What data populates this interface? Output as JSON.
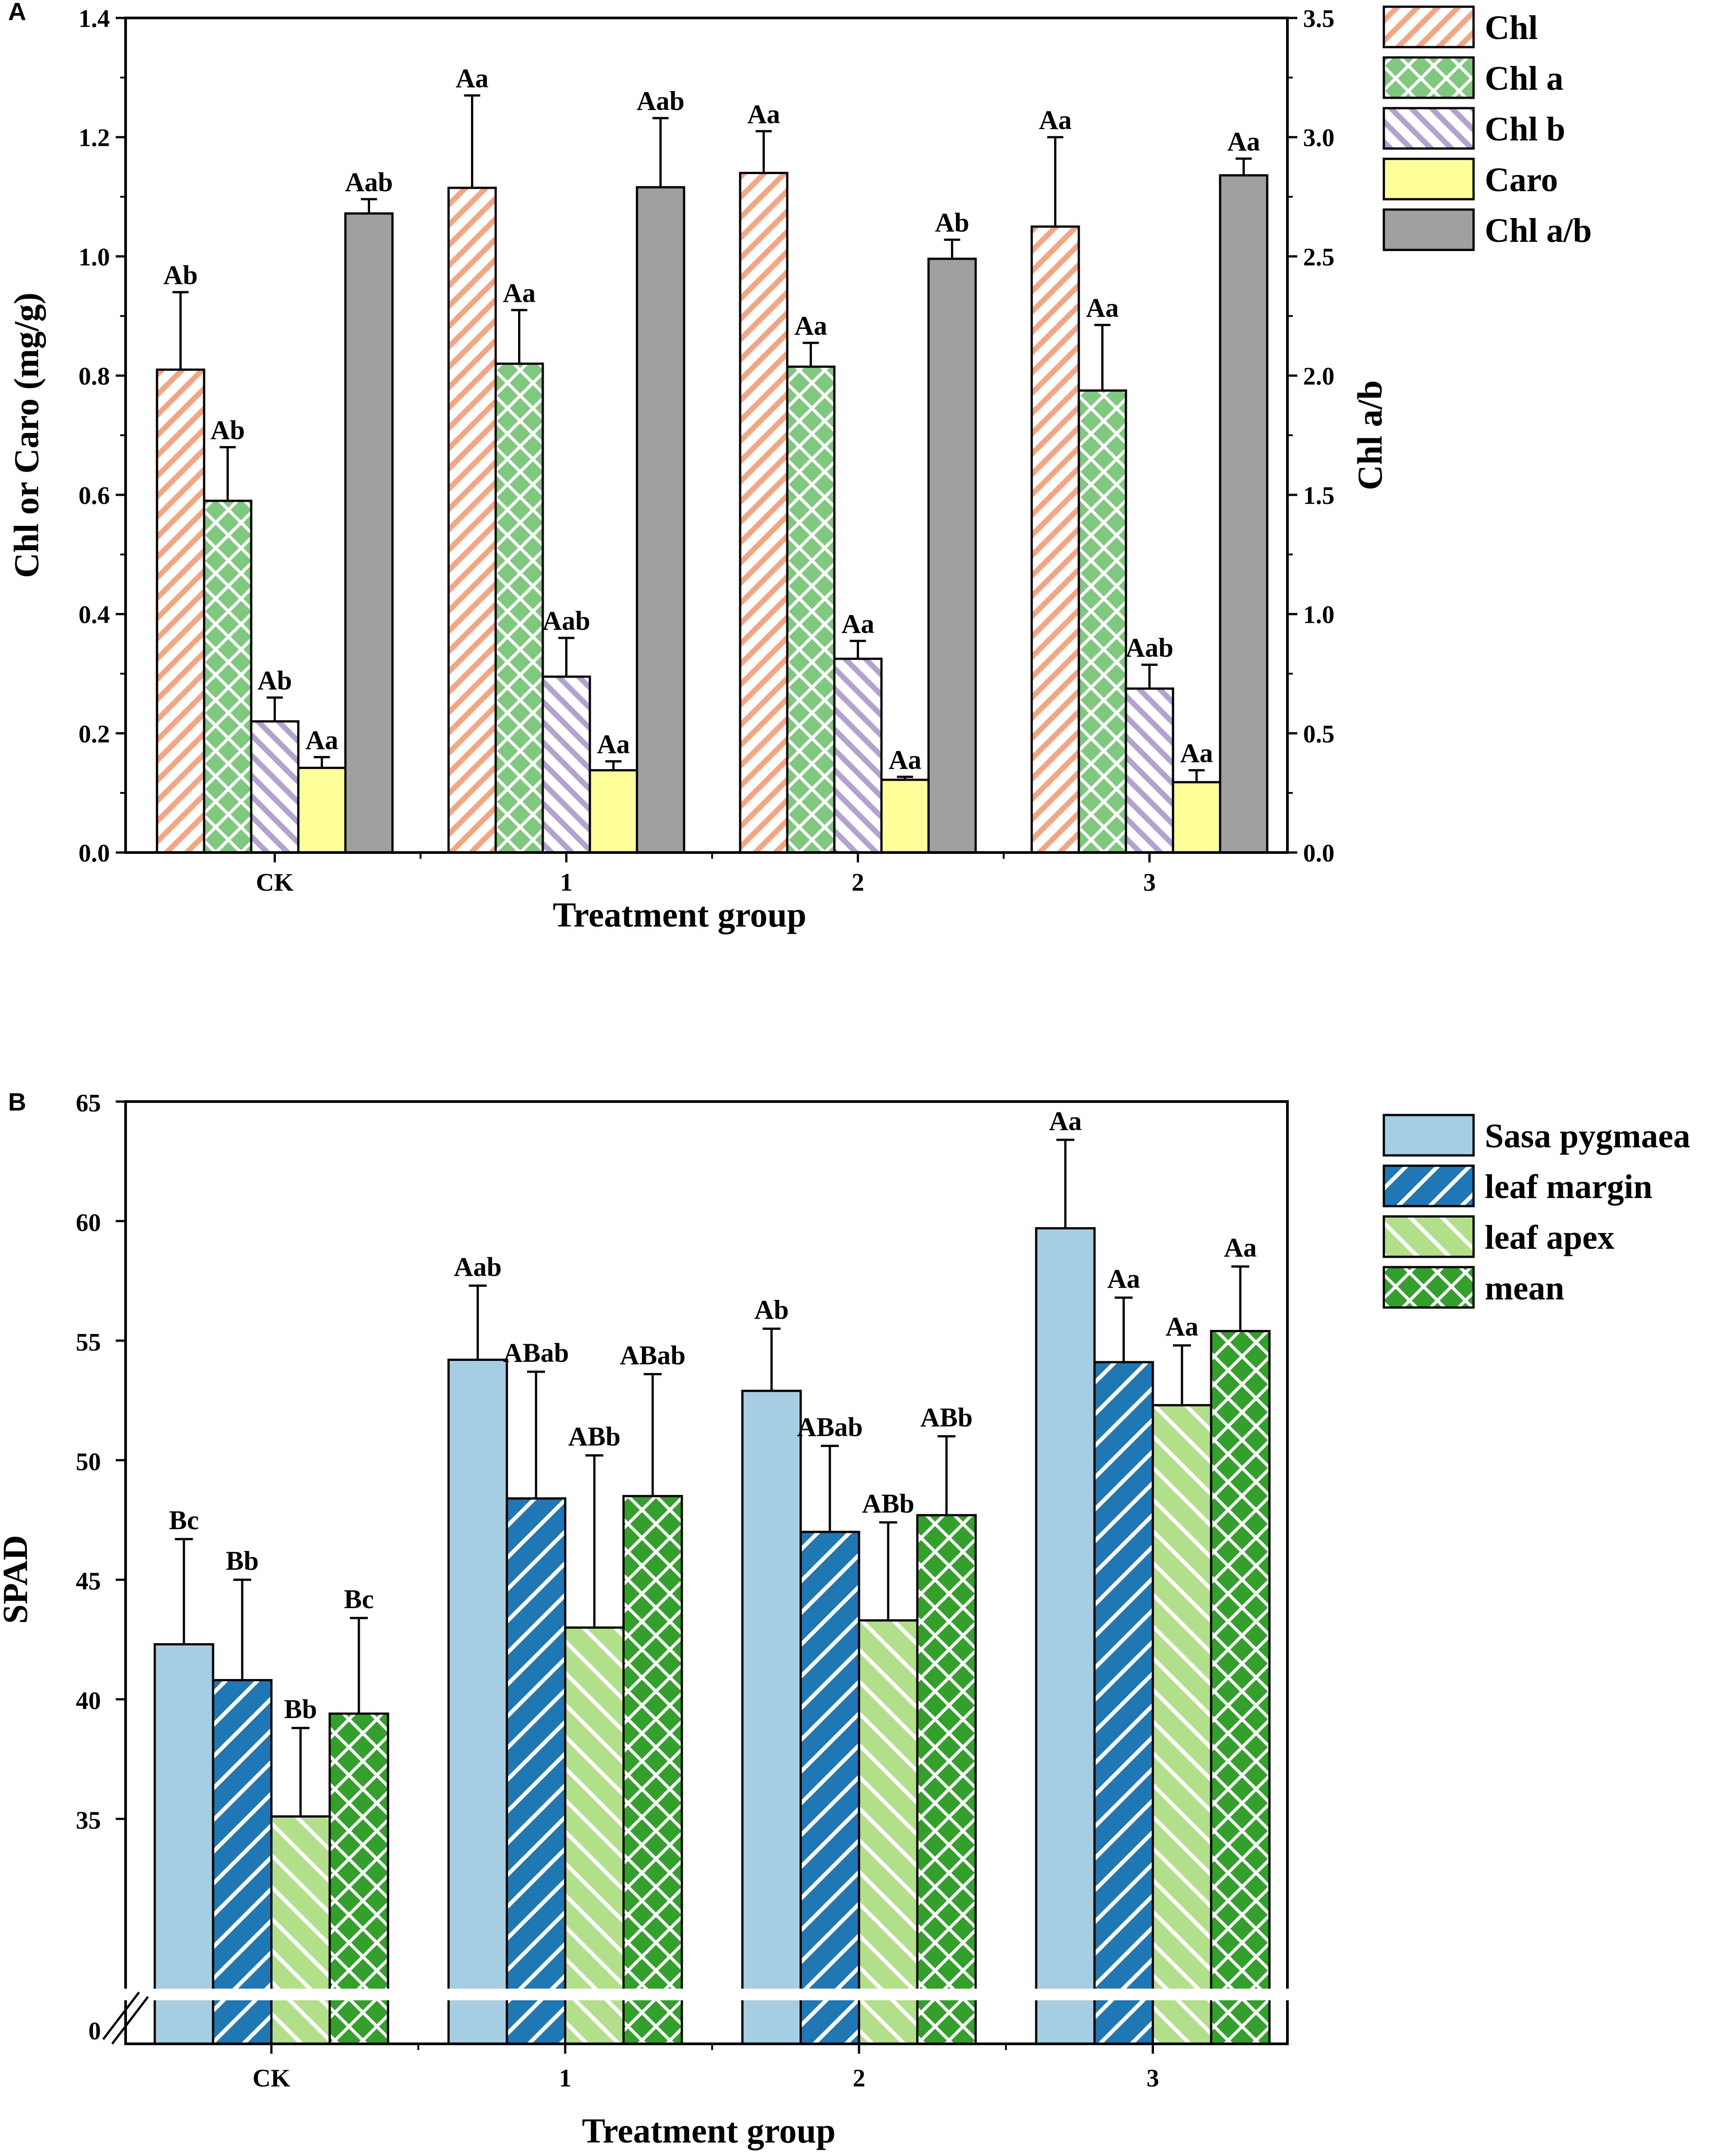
{
  "colors": {
    "chl": "#F4A582",
    "chl_a": "#7FC97F",
    "chl_b": "#B3A2CF",
    "caro": "#FFFF99",
    "chl_ab": "#A0A0A0",
    "sasa": "#A6CEE3",
    "leaf_margin": "#1F78B4",
    "leaf_apex": "#B2DF8A",
    "mean": "#33A02C"
  },
  "chart_data": [
    {
      "panel": "A",
      "type": "bar",
      "xlabel": "Treatment group",
      "ylabel_left": "Chl or Caro (mg/g)",
      "ylabel_right": "Chl a/b",
      "ylim_left": [
        0,
        1.4
      ],
      "ylim_right": [
        0,
        3.5
      ],
      "yticks_left": [
        "0.0",
        "0.2",
        "0.4",
        "0.6",
        "0.8",
        "1.0",
        "1.2",
        "1.4"
      ],
      "yticks_right": [
        "0.0",
        "0.5",
        "1.0",
        "1.5",
        "2.0",
        "2.5",
        "3.0",
        "3.5"
      ],
      "categories": [
        "CK",
        "1",
        "2",
        "3"
      ],
      "legend_position": "right",
      "series": [
        {
          "name": "Chl",
          "axis": "left",
          "pattern": "diag",
          "values": [
            0.81,
            1.115,
            1.14,
            1.05
          ],
          "errors": [
            0.13,
            0.155,
            0.07,
            0.15
          ],
          "labels": [
            "Ab",
            "Aa",
            "Aa",
            "Aa"
          ]
        },
        {
          "name": "Chl a",
          "axis": "left",
          "pattern": "cross",
          "values": [
            0.59,
            0.82,
            0.815,
            0.775
          ],
          "errors": [
            0.09,
            0.09,
            0.04,
            0.11
          ],
          "labels": [
            "Ab",
            "Aa",
            "Aa",
            "Aa"
          ]
        },
        {
          "name": "Chl b",
          "axis": "left",
          "pattern": "back",
          "values": [
            0.22,
            0.295,
            0.325,
            0.275
          ],
          "errors": [
            0.04,
            0.065,
            0.03,
            0.04
          ],
          "labels": [
            "Ab",
            "Aab",
            "Aa",
            "Aab"
          ]
        },
        {
          "name": "Caro",
          "axis": "left",
          "pattern": "none",
          "values": [
            0.142,
            0.138,
            0.122,
            0.118
          ],
          "errors": [
            0.018,
            0.015,
            0.005,
            0.02
          ],
          "labels": [
            "Aa",
            "Aa",
            "Aa",
            "Aa"
          ]
        },
        {
          "name": "Chl a/b",
          "axis": "right",
          "pattern": "none",
          "values": [
            2.68,
            2.79,
            2.49,
            2.84
          ],
          "errors": [
            0.06,
            0.29,
            0.08,
            0.07
          ],
          "labels": [
            "Aab",
            "Aab",
            "Ab",
            "Aa"
          ]
        }
      ]
    },
    {
      "panel": "B",
      "type": "bar",
      "xlabel": "Treatment group",
      "ylabel": "SPAD",
      "ylim": [
        30,
        65
      ],
      "yticks": [
        "35",
        "40",
        "45",
        "50",
        "55",
        "60",
        "65"
      ],
      "axis_break_label": "0",
      "categories": [
        "CK",
        "1",
        "2",
        "3"
      ],
      "legend_position": "right",
      "series": [
        {
          "name": "Sasa pygmaea",
          "pattern": "none",
          "values": [
            42.3,
            54.2,
            52.9,
            59.7
          ],
          "errors": [
            4.4,
            3.1,
            2.6,
            3.7
          ],
          "labels": [
            "Bc",
            "Aab",
            "Ab",
            "Aa"
          ]
        },
        {
          "name": "leaf margin",
          "pattern": "diag-white",
          "values": [
            40.8,
            48.4,
            47.0,
            54.1
          ],
          "errors": [
            4.2,
            5.3,
            3.6,
            2.7
          ],
          "labels": [
            "Bb",
            "ABab",
            "ABab",
            "Aa"
          ]
        },
        {
          "name": "leaf apex",
          "pattern": "back-white",
          "values": [
            35.1,
            43.0,
            43.3,
            52.3
          ],
          "errors": [
            3.7,
            7.2,
            4.1,
            2.5
          ],
          "labels": [
            "Bb",
            "ABb",
            "ABb",
            "Aa"
          ]
        },
        {
          "name": "mean",
          "pattern": "cross-white",
          "values": [
            39.4,
            48.5,
            47.7,
            55.4
          ],
          "errors": [
            4.0,
            5.1,
            3.3,
            2.7
          ],
          "labels": [
            "Bc",
            "ABab",
            "ABb",
            "Aa"
          ]
        }
      ]
    }
  ]
}
